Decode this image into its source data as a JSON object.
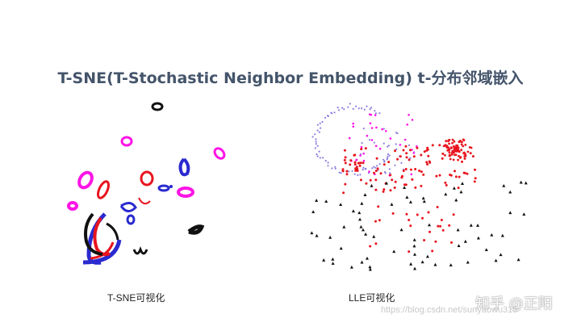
{
  "slide": {
    "title": "T-SNE(T-Stochastic Neighbor Embedding) t-分布邻域嵌入",
    "tsne_caption": "T-SNE可视化",
    "lle_caption": "LLE可视化"
  },
  "watermarks": {
    "zhihu": "知乎 @正阳",
    "csdn": "https://blog.csdn.net/sunyaowu315"
  },
  "colors": {
    "title": "#44546A",
    "cluster_red": "#e8141e",
    "cluster_blue": "#2a2ad0",
    "cluster_magenta": "#ff14e6",
    "cluster_black": "#111111",
    "cluster_violet": "#8a7fe0"
  }
}
